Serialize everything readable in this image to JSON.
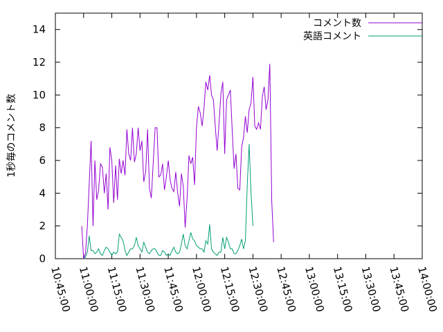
{
  "chart_data": {
    "type": "line",
    "title": "",
    "xlabel": "",
    "ylabel": "1秒毎のコメント数",
    "ylim": [
      0,
      15
    ],
    "yticks": [
      0,
      2,
      4,
      6,
      8,
      10,
      12,
      14
    ],
    "xlim": [
      "10:45:00",
      "14:00:00"
    ],
    "xticks": [
      "10:45:00",
      "11:00:00",
      "11:15:00",
      "11:30:00",
      "11:45:00",
      "12:00:00",
      "12:15:00",
      "12:30:00",
      "12:45:00",
      "13:00:00",
      "13:15:00",
      "13:30:00",
      "13:45:00",
      "14:00:00"
    ],
    "grid": false,
    "legend_position": "top-right",
    "series": [
      {
        "name": "コメント数",
        "color": "#9400d3",
        "points": [
          [
            "10:59:00",
            2.0
          ],
          [
            "11:00:00",
            0.0
          ],
          [
            "11:01:00",
            0.3
          ],
          [
            "11:02:00",
            2.0
          ],
          [
            "11:04:00",
            7.2
          ],
          [
            "11:05:00",
            2.0
          ],
          [
            "11:06:00",
            6.0
          ],
          [
            "11:07:00",
            3.6
          ],
          [
            "11:08:00",
            4.2
          ],
          [
            "11:09:00",
            5.8
          ],
          [
            "11:10:00",
            5.6
          ],
          [
            "11:11:00",
            4.0
          ],
          [
            "11:12:00",
            5.2
          ],
          [
            "11:13:00",
            3.0
          ],
          [
            "11:14:00",
            6.8
          ],
          [
            "11:15:00",
            6.0
          ],
          [
            "11:16:00",
            3.4
          ],
          [
            "11:17:00",
            5.7
          ],
          [
            "11:18:00",
            3.6
          ],
          [
            "11:19:00",
            6.1
          ],
          [
            "11:20:00",
            5.2
          ],
          [
            "11:21:00",
            6.0
          ],
          [
            "11:22:00",
            5.1
          ],
          [
            "11:23:00",
            7.9
          ],
          [
            "11:24:00",
            6.4
          ],
          [
            "11:25:00",
            6.0
          ],
          [
            "11:26:00",
            8.0
          ],
          [
            "11:27:00",
            5.9
          ],
          [
            "11:28:00",
            6.4
          ],
          [
            "11:29:00",
            8.0
          ],
          [
            "11:30:00",
            6.6
          ],
          [
            "11:31:00",
            7.2
          ],
          [
            "11:32:00",
            4.7
          ],
          [
            "11:33:00",
            5.3
          ],
          [
            "11:34:00",
            7.9
          ],
          [
            "11:35:00",
            4.3
          ],
          [
            "11:36:00",
            3.7
          ],
          [
            "11:37:00",
            5.8
          ],
          [
            "11:38:00",
            8.0
          ],
          [
            "11:39:00",
            8.0
          ],
          [
            "11:40:00",
            5.0
          ],
          [
            "11:41:00",
            5.1
          ],
          [
            "11:42:00",
            5.8
          ],
          [
            "11:43:00",
            4.2
          ],
          [
            "11:44:00",
            5.0
          ],
          [
            "11:45:00",
            6.0
          ],
          [
            "11:46:00",
            4.8
          ],
          [
            "11:47:00",
            4.3
          ],
          [
            "11:48:00",
            4.1
          ],
          [
            "11:49:00",
            5.3
          ],
          [
            "11:50:00",
            4.0
          ],
          [
            "11:51:00",
            3.2
          ],
          [
            "11:52:00",
            5.2
          ],
          [
            "11:53:00",
            4.4
          ],
          [
            "11:54:00",
            1.9
          ],
          [
            "11:55:00",
            3.7
          ],
          [
            "11:56:00",
            6.3
          ],
          [
            "11:57:00",
            5.8
          ],
          [
            "11:58:00",
            6.2
          ],
          [
            "11:59:00",
            4.5
          ],
          [
            "12:00:00",
            8.0
          ],
          [
            "12:01:00",
            9.3
          ],
          [
            "12:02:00",
            8.9
          ],
          [
            "12:03:00",
            8.1
          ],
          [
            "12:04:00",
            9.2
          ],
          [
            "12:05:00",
            10.8
          ],
          [
            "12:06:00",
            10.3
          ],
          [
            "12:07:00",
            11.2
          ],
          [
            "12:08:00",
            10.0
          ],
          [
            "12:09:00",
            9.7
          ],
          [
            "12:10:00",
            8.1
          ],
          [
            "12:11:00",
            6.6
          ],
          [
            "12:12:00",
            8.3
          ],
          [
            "12:13:00",
            10.1
          ],
          [
            "12:14:00",
            10.8
          ],
          [
            "12:15:00",
            6.4
          ],
          [
            "12:16:00",
            9.7
          ],
          [
            "12:17:00",
            10.0
          ],
          [
            "12:18:00",
            10.3
          ],
          [
            "12:19:00",
            7.8
          ],
          [
            "12:20:00",
            5.5
          ],
          [
            "12:21:00",
            6.4
          ],
          [
            "12:22:00",
            4.3
          ],
          [
            "12:23:00",
            4.2
          ],
          [
            "12:24:00",
            6.8
          ],
          [
            "12:25:00",
            7.4
          ],
          [
            "12:26:00",
            8.7
          ],
          [
            "12:27:00",
            7.7
          ],
          [
            "12:28:00",
            9.1
          ],
          [
            "12:29:00",
            9.5
          ],
          [
            "12:30:00",
            11.1
          ],
          [
            "12:31:00",
            8.1
          ],
          [
            "12:32:00",
            7.9
          ],
          [
            "12:33:00",
            8.3
          ],
          [
            "12:34:00",
            7.9
          ],
          [
            "12:35:00",
            9.9
          ],
          [
            "12:36:00",
            10.5
          ],
          [
            "12:37:00",
            9.1
          ],
          [
            "12:38:00",
            9.7
          ],
          [
            "12:39:00",
            11.9
          ],
          [
            "12:40:00",
            3.5
          ],
          [
            "12:41:00",
            1.0
          ]
        ]
      },
      {
        "name": "英語コメント",
        "color": "#009e73",
        "points": [
          [
            "11:00:00",
            0.0
          ],
          [
            "11:01:00",
            0.1
          ],
          [
            "11:02:00",
            0.4
          ],
          [
            "11:03:00",
            1.4
          ],
          [
            "11:04:00",
            0.5
          ],
          [
            "11:05:00",
            0.5
          ],
          [
            "11:06:00",
            0.3
          ],
          [
            "11:07:00",
            0.4
          ],
          [
            "11:08:00",
            0.6
          ],
          [
            "11:09:00",
            0.3
          ],
          [
            "11:10:00",
            0.2
          ],
          [
            "11:11:00",
            0.5
          ],
          [
            "11:12:00",
            0.7
          ],
          [
            "11:13:00",
            0.6
          ],
          [
            "11:14:00",
            0.4
          ],
          [
            "11:15:00",
            0.2
          ],
          [
            "11:16:00",
            0.4
          ],
          [
            "11:17:00",
            0.3
          ],
          [
            "11:18:00",
            0.4
          ],
          [
            "11:19:00",
            1.5
          ],
          [
            "11:20:00",
            1.3
          ],
          [
            "11:21:00",
            1.1
          ],
          [
            "11:22:00",
            0.5
          ],
          [
            "11:23:00",
            0.2
          ],
          [
            "11:24:00",
            0.4
          ],
          [
            "11:25:00",
            0.6
          ],
          [
            "11:26:00",
            0.6
          ],
          [
            "11:27:00",
            0.8
          ],
          [
            "11:28:00",
            1.3
          ],
          [
            "11:29:00",
            0.8
          ],
          [
            "11:30:00",
            0.6
          ],
          [
            "11:31:00",
            0.4
          ],
          [
            "11:32:00",
            1.0
          ],
          [
            "11:33:00",
            0.7
          ],
          [
            "11:34:00",
            0.4
          ],
          [
            "11:35:00",
            0.3
          ],
          [
            "11:36:00",
            0.5
          ],
          [
            "11:37:00",
            0.6
          ],
          [
            "11:38:00",
            0.6
          ],
          [
            "11:39:00",
            0.4
          ],
          [
            "11:40:00",
            0.2
          ],
          [
            "11:41:00",
            0.2
          ],
          [
            "11:42:00",
            0.5
          ],
          [
            "11:43:00",
            0.4
          ],
          [
            "11:44:00",
            0.2
          ],
          [
            "11:45:00",
            0.3
          ],
          [
            "11:46:00",
            0.2
          ],
          [
            "11:47:00",
            0.5
          ],
          [
            "11:48:00",
            0.7
          ],
          [
            "11:49:00",
            0.4
          ],
          [
            "11:50:00",
            0.3
          ],
          [
            "11:51:00",
            0.4
          ],
          [
            "11:52:00",
            0.9
          ],
          [
            "11:53:00",
            1.5
          ],
          [
            "11:54:00",
            0.8
          ],
          [
            "11:55:00",
            0.6
          ],
          [
            "11:56:00",
            1.1
          ],
          [
            "11:57:00",
            1.6
          ],
          [
            "11:58:00",
            1.2
          ],
          [
            "11:59:00",
            1.1
          ],
          [
            "12:00:00",
            0.8
          ],
          [
            "12:01:00",
            0.7
          ],
          [
            "12:02:00",
            0.6
          ],
          [
            "12:03:00",
            0.6
          ],
          [
            "12:04:00",
            0.4
          ],
          [
            "12:05:00",
            1.1
          ],
          [
            "12:06:00",
            0.9
          ],
          [
            "12:07:00",
            2.1
          ],
          [
            "12:08:00",
            0.6
          ],
          [
            "12:09:00",
            0.4
          ],
          [
            "12:10:00",
            0.3
          ],
          [
            "12:11:00",
            0.2
          ],
          [
            "12:12:00",
            0.4
          ],
          [
            "12:13:00",
            0.4
          ],
          [
            "12:14:00",
            1.3
          ],
          [
            "12:15:00",
            0.6
          ],
          [
            "12:16:00",
            1.3
          ],
          [
            "12:17:00",
            1.0
          ],
          [
            "12:18:00",
            0.6
          ],
          [
            "12:19:00",
            0.6
          ],
          [
            "12:20:00",
            0.3
          ],
          [
            "12:21:00",
            0.3
          ],
          [
            "12:22:00",
            0.5
          ],
          [
            "12:23:00",
            0.8
          ],
          [
            "12:24:00",
            1.2
          ],
          [
            "12:25:00",
            0.6
          ],
          [
            "12:26:00",
            1.1
          ],
          [
            "12:27:00",
            4.5
          ],
          [
            "12:28:00",
            7.0
          ],
          [
            "12:29:00",
            4.0
          ],
          [
            "12:30:00",
            2.0
          ]
        ]
      }
    ]
  }
}
